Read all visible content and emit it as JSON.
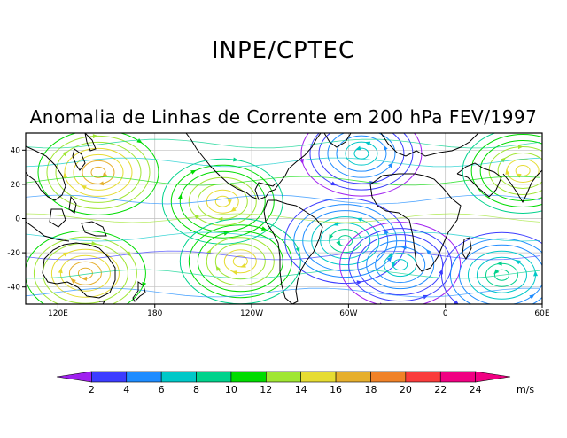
{
  "header": {
    "org": "INPE/CPTEC",
    "subtitle": "Anomalia de Linhas de Corrente em 200 hPa FEV/1997"
  },
  "map": {
    "type": "streamline-anomaly",
    "level": "200 hPa",
    "period": "FEV/1997",
    "lat_range": [
      -50,
      50
    ],
    "lon_range": [
      100,
      420
    ],
    "lat_ticks": [
      {
        "value": 40,
        "label": "40"
      },
      {
        "value": 20,
        "label": "20"
      },
      {
        "value": 0,
        "label": "0"
      },
      {
        "value": -20,
        "label": "-20"
      },
      {
        "value": -40,
        "label": "-40"
      }
    ],
    "lon_ticks": [
      {
        "value": 120,
        "label": "120E"
      },
      {
        "value": 180,
        "label": "180"
      },
      {
        "value": 240,
        "label": "120W"
      },
      {
        "value": 300,
        "label": "60W"
      },
      {
        "value": 360,
        "label": "0"
      },
      {
        "value": 420,
        "label": "60E"
      }
    ],
    "gridlines": true,
    "features": [
      {
        "name": "anticyclone-central-pacific",
        "lon": 222,
        "lat": 10
      },
      {
        "name": "anticyclone-north-pacific",
        "lon": 145,
        "lat": 27
      },
      {
        "name": "anticyclone-south-pacific",
        "lon": 233,
        "lat": -25
      },
      {
        "name": "anticyclone-australia",
        "lon": 137,
        "lat": -32
      },
      {
        "name": "anticyclone-arabia",
        "lon": 408,
        "lat": 28
      },
      {
        "name": "cyclone-south-america",
        "lon": 298,
        "lat": -13
      },
      {
        "name": "cyclone-south-atlantic",
        "lon": 332,
        "lat": -27
      },
      {
        "name": "cyclone-south-indian",
        "lon": 395,
        "lat": -33
      },
      {
        "name": "cyclone-north-atlantic",
        "lon": 308,
        "lat": 38
      }
    ]
  },
  "colorbar": {
    "unit": "m/s",
    "colors": [
      "#a020f0",
      "#3c3cff",
      "#1e8cff",
      "#00c8c8",
      "#00d28c",
      "#00dc00",
      "#a0e632",
      "#e6dc32",
      "#e6af2d",
      "#f08228",
      "#fa3c3c",
      "#f00082"
    ],
    "labels": [
      "2",
      "4",
      "6",
      "8",
      "10",
      "12",
      "14",
      "16",
      "18",
      "20",
      "22",
      "24"
    ]
  }
}
